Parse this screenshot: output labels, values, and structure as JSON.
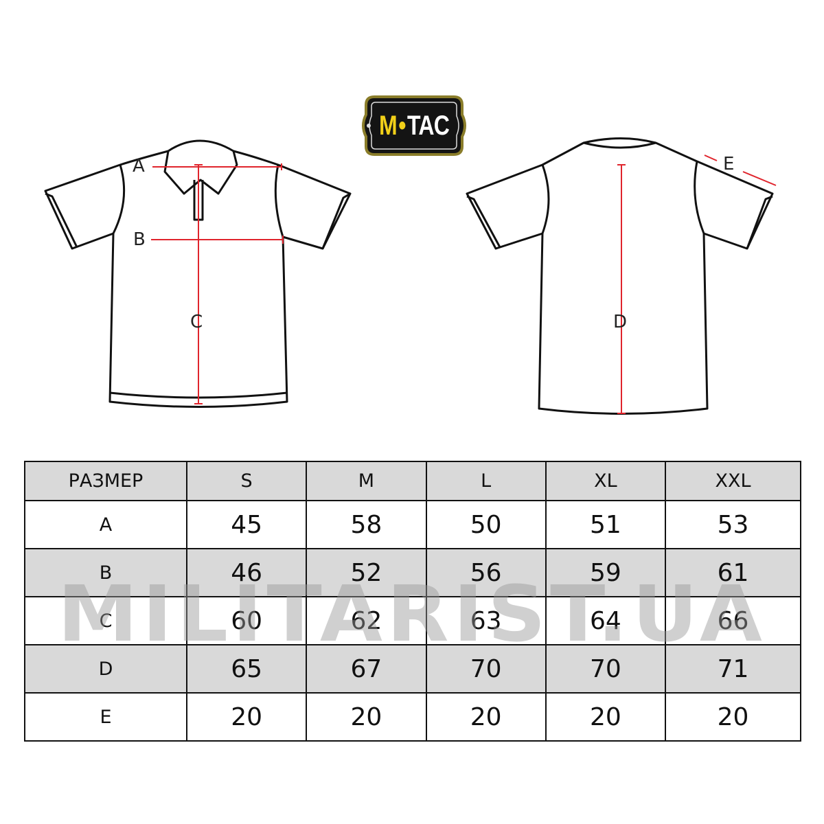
{
  "brand": {
    "logo_text": "M-TAC",
    "logo_part1": "M",
    "logo_part2": "TAC",
    "colors": {
      "logo_bg": "#141414",
      "logo_accent": "#f2d019",
      "logo_border": "#8a7d2a"
    }
  },
  "diagram": {
    "front_labels": [
      "A",
      "B",
      "C"
    ],
    "back_labels": [
      "D",
      "E"
    ],
    "measure_line_color": "#e0242c"
  },
  "size_table": {
    "header": [
      "РАЗМЕР",
      "S",
      "M",
      "L",
      "XL",
      "XXL"
    ],
    "rows": [
      {
        "label": "A",
        "values": [
          "45",
          "58",
          "50",
          "51",
          "53"
        ]
      },
      {
        "label": "B",
        "values": [
          "46",
          "52",
          "56",
          "59",
          "61"
        ]
      },
      {
        "label": "C",
        "values": [
          "60",
          "62",
          "63",
          "64",
          "66"
        ]
      },
      {
        "label": "D",
        "values": [
          "65",
          "67",
          "70",
          "70",
          "71"
        ]
      },
      {
        "label": "E",
        "values": [
          "20",
          "20",
          "20",
          "20",
          "20"
        ]
      }
    ],
    "colors": {
      "shaded_row": "#d9d9d9",
      "border": "#111111"
    }
  },
  "watermark": "MILITARIST.UA"
}
